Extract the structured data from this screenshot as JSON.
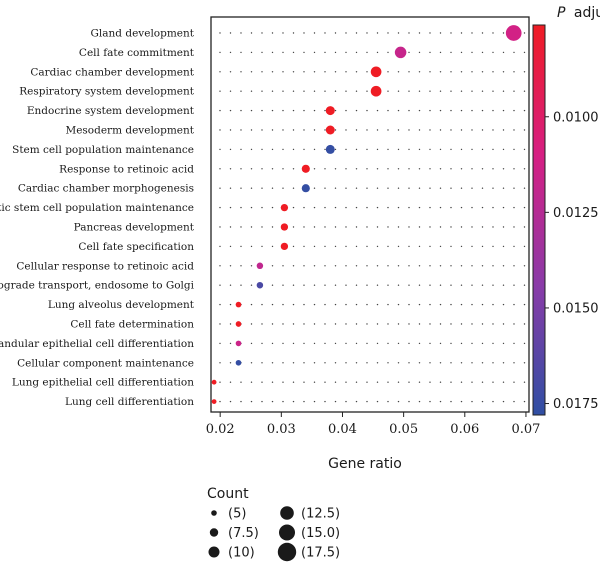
{
  "chart_data": {
    "type": "scatter",
    "xlabel": "Gene ratio",
    "xlim": [
      0.0185,
      0.0705
    ],
    "xticks": [
      "0.02",
      "0.03",
      "0.04",
      "0.05",
      "0.06",
      "0.07"
    ],
    "xtick_values": [
      0.02,
      0.03,
      0.04,
      0.05,
      0.06,
      0.07
    ],
    "grid": "dotted",
    "categories": [
      "Gland development",
      "Cell fate commitment",
      "Cardiac chamber development",
      "Respiratory system development",
      "Endocrine system development",
      "Mesoderm development",
      "Stem cell population maintenance",
      "Response to retinoic acid",
      "Cardiac chamber morphogenesis",
      "Somatic stem cell population maintenance",
      "Pancreas development",
      "Cell fate specification",
      "Cellular response to retinoic acid",
      "Retrograde transport, endosome to Golgi",
      "Lung alveolus development",
      "Cell fate determination",
      "Glandular epithelial cell differentiation",
      "Cellular component maintenance",
      "Lung epithelial cell differentiation",
      "Lung cell differentiation"
    ],
    "points": [
      {
        "term": "Gland development",
        "gene_ratio": 0.068,
        "count": 18,
        "p_adjust": 0.0112
      },
      {
        "term": "Cell fate commitment",
        "gene_ratio": 0.0495,
        "count": 13,
        "p_adjust": 0.0117
      },
      {
        "term": "Cardiac chamber development",
        "gene_ratio": 0.0455,
        "count": 12,
        "p_adjust": 0.0076
      },
      {
        "term": "Respiratory system development",
        "gene_ratio": 0.0455,
        "count": 12,
        "p_adjust": 0.0076
      },
      {
        "term": "Endocrine system development",
        "gene_ratio": 0.038,
        "count": 10,
        "p_adjust": 0.0076
      },
      {
        "term": "Mesoderm development",
        "gene_ratio": 0.038,
        "count": 10,
        "p_adjust": 0.0076
      },
      {
        "term": "Stem cell population maintenance",
        "gene_ratio": 0.038,
        "count": 10,
        "p_adjust": 0.0176
      },
      {
        "term": "Response to retinoic acid",
        "gene_ratio": 0.034,
        "count": 9,
        "p_adjust": 0.0076
      },
      {
        "term": "Cardiac chamber morphogenesis",
        "gene_ratio": 0.034,
        "count": 9,
        "p_adjust": 0.0176
      },
      {
        "term": "Somatic stem cell population maintenance",
        "gene_ratio": 0.0305,
        "count": 8,
        "p_adjust": 0.0076
      },
      {
        "term": "Pancreas development",
        "gene_ratio": 0.0305,
        "count": 8,
        "p_adjust": 0.0076
      },
      {
        "term": "Cell fate specification",
        "gene_ratio": 0.0305,
        "count": 8,
        "p_adjust": 0.0076
      },
      {
        "term": "Cellular response to retinoic acid",
        "gene_ratio": 0.0265,
        "count": 7,
        "p_adjust": 0.012
      },
      {
        "term": "Retrograde transport, endosome to Golgi",
        "gene_ratio": 0.0265,
        "count": 7,
        "p_adjust": 0.0168
      },
      {
        "term": "Lung alveolus development",
        "gene_ratio": 0.023,
        "count": 6,
        "p_adjust": 0.0076
      },
      {
        "term": "Cell fate determination",
        "gene_ratio": 0.023,
        "count": 6,
        "p_adjust": 0.0076
      },
      {
        "term": "Glandular epithelial cell differentiation",
        "gene_ratio": 0.023,
        "count": 6,
        "p_adjust": 0.0115
      },
      {
        "term": "Cellular component maintenance",
        "gene_ratio": 0.023,
        "count": 6,
        "p_adjust": 0.0176
      },
      {
        "term": "Lung epithelial cell differentiation",
        "gene_ratio": 0.019,
        "count": 5,
        "p_adjust": 0.0076
      },
      {
        "term": "Lung cell differentiation",
        "gene_ratio": 0.019,
        "count": 5,
        "p_adjust": 0.0076
      }
    ],
    "color_scale": {
      "title_italic": "P",
      "title": "adjust",
      "range": [
        0.0076,
        0.0178
      ],
      "ticks": [
        "0.0100",
        "0.0125",
        "0.0150",
        "0.0175"
      ],
      "tick_values": [
        0.01,
        0.0125,
        0.015,
        0.0175
      ],
      "colors": [
        "#ef1c24",
        "#d61f83",
        "#8a3ba8",
        "#2f4fa3"
      ]
    },
    "size_legend": {
      "title": "Count",
      "entries": [
        {
          "label": "(5)",
          "value": 5
        },
        {
          "label": "(7.5)",
          "value": 7.5
        },
        {
          "label": "(10)",
          "value": 10
        },
        {
          "label": "(12.5)",
          "value": 12.5
        },
        {
          "label": "(15.0)",
          "value": 15.0
        },
        {
          "label": "(17.5)",
          "value": 17.5
        }
      ],
      "color": "#1a1a1a"
    }
  }
}
